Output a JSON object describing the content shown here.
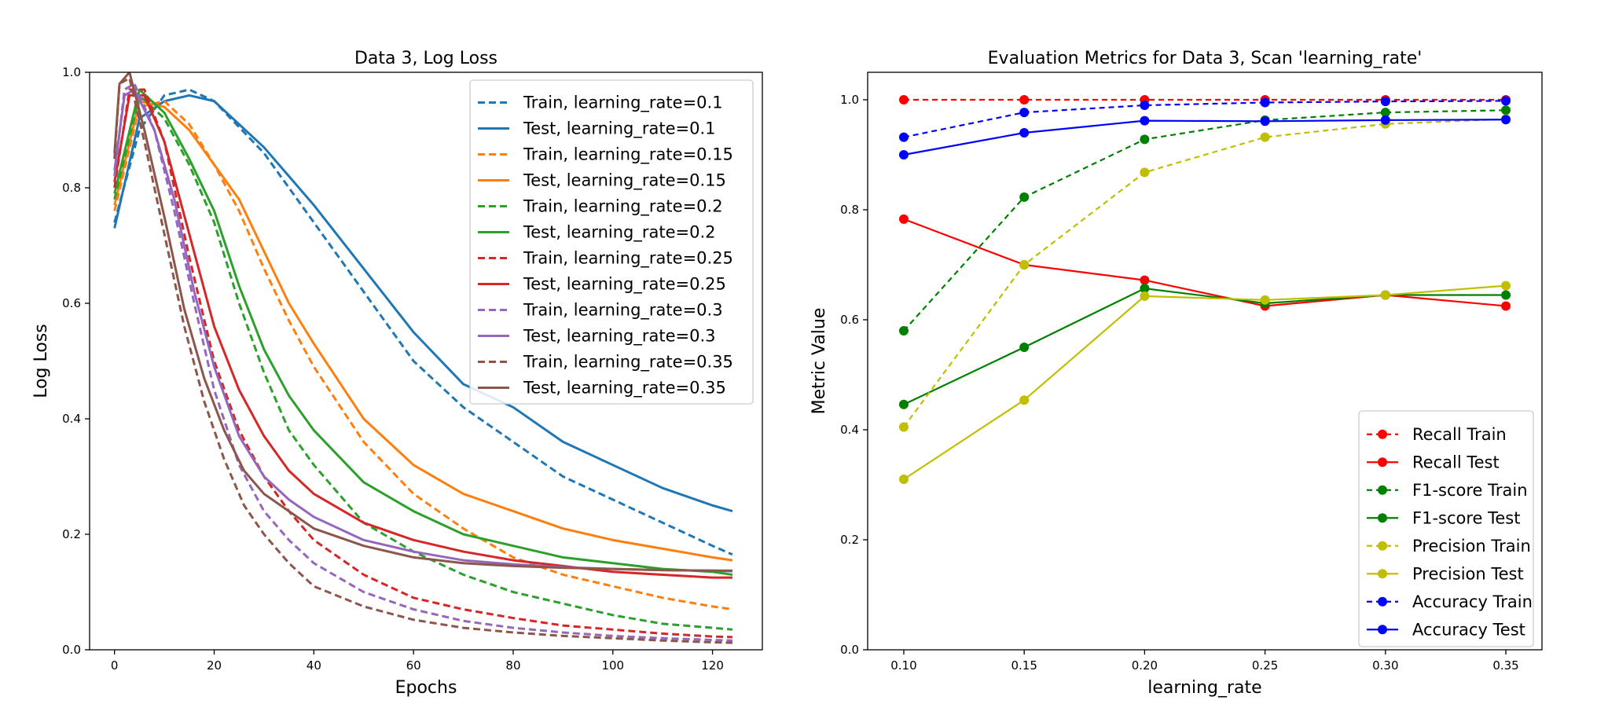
{
  "chart_data": [
    {
      "type": "line",
      "title": "Data 3, Log Loss",
      "xlabel": "Epochs",
      "ylabel": "Log Loss",
      "xlim": [
        -5,
        130
      ],
      "ylim": [
        0.0,
        1.0
      ],
      "xticks": [
        0,
        20,
        40,
        60,
        80,
        100,
        120
      ],
      "yticks": [
        0.0,
        0.2,
        0.4,
        0.6,
        0.8,
        1.0
      ],
      "xtick_labels": [
        "0",
        "20",
        "40",
        "60",
        "80",
        "100",
        "120"
      ],
      "ytick_labels": [
        "0.0",
        "0.2",
        "0.4",
        "0.6",
        "0.8",
        "1.0"
      ],
      "legend_position": "top-right",
      "grid": false,
      "series": [
        {
          "name": "Train, learning_rate=0.1",
          "color": "#1f77b4",
          "dash": true,
          "x": [
            0,
            5,
            10,
            15,
            20,
            30,
            40,
            50,
            60,
            70,
            80,
            90,
            100,
            110,
            120,
            124
          ],
          "y": [
            0.74,
            0.9,
            0.96,
            0.97,
            0.95,
            0.86,
            0.74,
            0.62,
            0.5,
            0.42,
            0.36,
            0.3,
            0.26,
            0.22,
            0.18,
            0.165
          ]
        },
        {
          "name": "Test, learning_rate=0.1",
          "color": "#1f77b4",
          "dash": false,
          "x": [
            0,
            5,
            10,
            15,
            20,
            30,
            40,
            50,
            60,
            70,
            80,
            90,
            100,
            110,
            120,
            124
          ],
          "y": [
            0.73,
            0.92,
            0.95,
            0.96,
            0.95,
            0.87,
            0.77,
            0.66,
            0.55,
            0.46,
            0.42,
            0.36,
            0.32,
            0.28,
            0.25,
            0.24
          ]
        },
        {
          "name": "Train, learning_rate=0.15",
          "color": "#ff7f0e",
          "dash": true,
          "x": [
            0,
            5,
            10,
            15,
            20,
            25,
            30,
            35,
            40,
            50,
            60,
            70,
            80,
            90,
            100,
            110,
            120,
            124
          ],
          "y": [
            0.76,
            0.94,
            0.95,
            0.91,
            0.84,
            0.76,
            0.66,
            0.57,
            0.49,
            0.36,
            0.27,
            0.21,
            0.16,
            0.13,
            0.11,
            0.09,
            0.075,
            0.07
          ]
        },
        {
          "name": "Test, learning_rate=0.15",
          "color": "#ff7f0e",
          "dash": false,
          "x": [
            0,
            5,
            10,
            15,
            20,
            25,
            30,
            35,
            40,
            50,
            60,
            70,
            80,
            90,
            100,
            110,
            120,
            124
          ],
          "y": [
            0.77,
            0.95,
            0.94,
            0.9,
            0.84,
            0.78,
            0.69,
            0.6,
            0.53,
            0.4,
            0.32,
            0.27,
            0.24,
            0.21,
            0.19,
            0.175,
            0.16,
            0.155
          ]
        },
        {
          "name": "Train, learning_rate=0.2",
          "color": "#2ca02c",
          "dash": true,
          "x": [
            0,
            5,
            10,
            15,
            20,
            25,
            30,
            35,
            40,
            50,
            60,
            70,
            80,
            90,
            100,
            110,
            120,
            124
          ],
          "y": [
            0.78,
            0.96,
            0.92,
            0.84,
            0.74,
            0.6,
            0.48,
            0.38,
            0.32,
            0.22,
            0.17,
            0.13,
            0.1,
            0.08,
            0.06,
            0.045,
            0.038,
            0.035
          ]
        },
        {
          "name": "Test, learning_rate=0.2",
          "color": "#2ca02c",
          "dash": false,
          "x": [
            0,
            5,
            10,
            15,
            20,
            25,
            30,
            35,
            40,
            50,
            60,
            70,
            80,
            90,
            100,
            110,
            120,
            124
          ],
          "y": [
            0.79,
            0.97,
            0.93,
            0.85,
            0.76,
            0.63,
            0.52,
            0.44,
            0.38,
            0.29,
            0.24,
            0.2,
            0.18,
            0.16,
            0.15,
            0.14,
            0.135,
            0.13
          ]
        },
        {
          "name": "Train, learning_rate=0.25",
          "color": "#d62728",
          "dash": true,
          "x": [
            0,
            3,
            6,
            10,
            15,
            20,
            25,
            30,
            35,
            40,
            50,
            60,
            70,
            80,
            90,
            100,
            110,
            120,
            124
          ],
          "y": [
            0.8,
            0.97,
            0.97,
            0.88,
            0.68,
            0.5,
            0.38,
            0.3,
            0.24,
            0.19,
            0.13,
            0.09,
            0.07,
            0.055,
            0.042,
            0.035,
            0.028,
            0.023,
            0.022
          ]
        },
        {
          "name": "Test, learning_rate=0.25",
          "color": "#d62728",
          "dash": false,
          "x": [
            0,
            3,
            6,
            10,
            15,
            20,
            25,
            30,
            35,
            40,
            50,
            60,
            70,
            80,
            90,
            100,
            110,
            120,
            124
          ],
          "y": [
            0.81,
            0.96,
            0.96,
            0.88,
            0.72,
            0.56,
            0.45,
            0.37,
            0.31,
            0.27,
            0.22,
            0.19,
            0.17,
            0.155,
            0.145,
            0.135,
            0.13,
            0.125,
            0.125
          ]
        },
        {
          "name": "Train, learning_rate=0.3",
          "color": "#9467bd",
          "dash": true,
          "x": [
            0,
            2,
            4,
            8,
            12,
            16,
            20,
            25,
            30,
            35,
            40,
            50,
            60,
            70,
            80,
            90,
            100,
            110,
            120,
            124
          ],
          "y": [
            0.82,
            0.97,
            0.98,
            0.9,
            0.76,
            0.6,
            0.45,
            0.32,
            0.24,
            0.19,
            0.15,
            0.1,
            0.07,
            0.05,
            0.038,
            0.03,
            0.024,
            0.02,
            0.017,
            0.016
          ]
        },
        {
          "name": "Test, learning_rate=0.3",
          "color": "#9467bd",
          "dash": false,
          "x": [
            0,
            2,
            4,
            8,
            12,
            16,
            20,
            25,
            30,
            35,
            40,
            50,
            60,
            70,
            80,
            90,
            100,
            110,
            120,
            124
          ],
          "y": [
            0.83,
            0.96,
            0.97,
            0.9,
            0.78,
            0.62,
            0.49,
            0.37,
            0.3,
            0.26,
            0.23,
            0.19,
            0.17,
            0.155,
            0.148,
            0.143,
            0.14,
            0.138,
            0.137,
            0.136
          ]
        },
        {
          "name": "Train, learning_rate=0.35",
          "color": "#8c564b",
          "dash": true,
          "x": [
            0,
            1,
            3,
            6,
            10,
            14,
            18,
            22,
            26,
            30,
            35,
            40,
            50,
            60,
            70,
            80,
            90,
            100,
            110,
            120,
            124
          ],
          "y": [
            0.85,
            0.98,
            0.99,
            0.88,
            0.72,
            0.56,
            0.43,
            0.33,
            0.25,
            0.2,
            0.15,
            0.11,
            0.075,
            0.052,
            0.038,
            0.03,
            0.024,
            0.02,
            0.016,
            0.013,
            0.012
          ]
        },
        {
          "name": "Test, learning_rate=0.35",
          "color": "#8c564b",
          "dash": false,
          "x": [
            0,
            1,
            3,
            6,
            10,
            14,
            18,
            22,
            26,
            30,
            35,
            40,
            50,
            60,
            70,
            80,
            90,
            100,
            110,
            120,
            124
          ],
          "y": [
            0.86,
            0.98,
            1.0,
            0.9,
            0.75,
            0.59,
            0.47,
            0.38,
            0.31,
            0.27,
            0.24,
            0.21,
            0.18,
            0.16,
            0.15,
            0.145,
            0.142,
            0.14,
            0.138,
            0.137,
            0.137
          ]
        }
      ]
    },
    {
      "type": "line",
      "title": "Evaluation Metrics for Data 3, Scan 'learning_rate'",
      "xlabel": "learning_rate",
      "ylabel": "Metric Value",
      "xlim": [
        0.085,
        0.365
      ],
      "ylim": [
        0.0,
        1.05
      ],
      "xticks": [
        0.1,
        0.15,
        0.2,
        0.25,
        0.3,
        0.35
      ],
      "yticks": [
        0.0,
        0.2,
        0.4,
        0.6,
        0.8,
        1.0
      ],
      "xtick_labels": [
        "0.10",
        "0.15",
        "0.20",
        "0.25",
        "0.30",
        "0.35"
      ],
      "ytick_labels": [
        "0.0",
        "0.2",
        "0.4",
        "0.6",
        "0.8",
        "1.0"
      ],
      "legend_position": "bottom-right",
      "grid": false,
      "x": [
        0.1,
        0.15,
        0.2,
        0.25,
        0.3,
        0.35
      ],
      "series": [
        {
          "name": "Recall Train",
          "color": "#ff0000",
          "dash": true,
          "values": [
            1.0,
            1.0,
            1.0,
            1.0,
            1.0,
            1.0
          ]
        },
        {
          "name": "Recall Test",
          "color": "#ff0000",
          "dash": false,
          "values": [
            0.783,
            0.7,
            0.672,
            0.625,
            0.645,
            0.625
          ]
        },
        {
          "name": "F1-score Train",
          "color": "#008000",
          "dash": true,
          "values": [
            0.58,
            0.823,
            0.928,
            0.963,
            0.977,
            0.981
          ]
        },
        {
          "name": "F1-score Test",
          "color": "#008000",
          "dash": false,
          "values": [
            0.446,
            0.55,
            0.657,
            0.63,
            0.645,
            0.645
          ]
        },
        {
          "name": "Precision Train",
          "color": "#bfbf00",
          "dash": true,
          "values": [
            0.405,
            0.7,
            0.868,
            0.932,
            0.956,
            0.965
          ]
        },
        {
          "name": "Precision Test",
          "color": "#bfbf00",
          "dash": false,
          "values": [
            0.31,
            0.454,
            0.643,
            0.636,
            0.645,
            0.662
          ]
        },
        {
          "name": "Accuracy Train",
          "color": "#0000ff",
          "dash": true,
          "values": [
            0.932,
            0.977,
            0.99,
            0.995,
            0.997,
            0.998
          ]
        },
        {
          "name": "Accuracy Test",
          "color": "#0000ff",
          "dash": false,
          "values": [
            0.9,
            0.94,
            0.962,
            0.961,
            0.963,
            0.964
          ]
        }
      ]
    }
  ]
}
